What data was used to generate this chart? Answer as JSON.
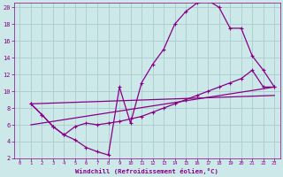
{
  "background_color": "#cce8e8",
  "grid_color": "#aacccc",
  "line_color": "#880088",
  "xlabel": "Windchill (Refroidissement éolien,°C)",
  "xlabel_color": "#880088",
  "tick_color": "#880088",
  "xlim": [
    -0.5,
    23.5
  ],
  "ylim": [
    2,
    20.5
  ],
  "xticks": [
    0,
    1,
    2,
    3,
    4,
    5,
    6,
    7,
    8,
    9,
    10,
    11,
    12,
    13,
    14,
    15,
    16,
    17,
    18,
    19,
    20,
    21,
    22,
    23
  ],
  "yticks": [
    2,
    4,
    6,
    8,
    10,
    12,
    14,
    16,
    18,
    20
  ],
  "curve1_x": [
    1,
    2,
    3,
    4,
    5,
    6,
    7,
    8,
    9,
    10,
    11,
    12,
    13,
    14,
    15,
    16,
    17,
    18,
    19,
    20,
    21,
    22,
    23
  ],
  "curve1_y": [
    8.5,
    7.2,
    5.8,
    4.8,
    4.2,
    3.3,
    2.8,
    2.4,
    10.5,
    6.2,
    11.0,
    13.2,
    15.0,
    18.0,
    19.5,
    20.5,
    20.8,
    20.0,
    17.5,
    17.5,
    14.2,
    12.5,
    10.5
  ],
  "curve2_x": [
    1,
    2,
    3,
    4,
    5,
    6,
    7,
    8,
    9,
    10,
    11,
    12,
    13,
    14,
    15,
    16,
    17,
    18,
    19,
    20,
    21,
    22,
    23
  ],
  "curve2_y": [
    8.5,
    7.2,
    5.8,
    4.8,
    5.8,
    6.2,
    6.0,
    6.2,
    6.4,
    6.7,
    7.0,
    7.5,
    8.0,
    8.5,
    9.0,
    9.5,
    10.0,
    10.5,
    11.0,
    11.5,
    12.5,
    10.5,
    10.5
  ],
  "line3_x": [
    1,
    23
  ],
  "line3_y": [
    8.5,
    9.5
  ],
  "line4_x": [
    1,
    23
  ],
  "line4_y": [
    6.0,
    10.5
  ]
}
